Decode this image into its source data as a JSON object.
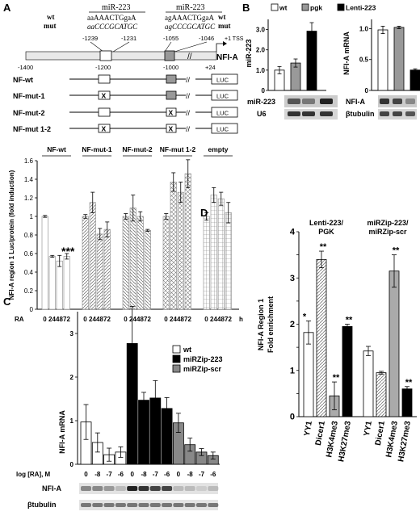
{
  "panels": {
    "A": "A",
    "B": "B",
    "C": "C",
    "D": "D"
  },
  "panelA": {
    "mir_label_1": "miR-223",
    "mir_label_2": "miR-223",
    "wt": "wt",
    "mut": "mut",
    "wt_seq_1": "aaAAACTGgaA",
    "mut_seq_1": "aaCCCGCATGC",
    "wt_seq_2": "agAAACTGgaA",
    "mut_seq_2": "agCCCGCATGC",
    "wt_r": "wt",
    "mut_r": "mut",
    "pos_1239": "-1239",
    "pos_1231": "-1231",
    "pos_1055": "-1055",
    "pos_1046": "-1046",
    "tss": "+1 TSS",
    "gene": "NFI-A",
    "pos_1400": "-1400",
    "pos_1200": "-1200",
    "pos_1000": "-1000",
    "pos_24": "+24",
    "constructs": [
      "NF-wt",
      "NF-mut-1",
      "NF-mut-2",
      "NF-mut 1-2"
    ],
    "luc": "LUC",
    "x_mark": "X"
  },
  "chartA": {
    "type": "bar",
    "ylabel": "NFI-A region 1 Luc/protein (fold induction)",
    "groups": [
      "NF-wt",
      "NF-mut-1",
      "NF-mut-2",
      "NF-mut 1-2",
      "empty"
    ],
    "timepoints": [
      "0",
      "24",
      "48",
      "72"
    ],
    "xprefix": "RA",
    "xunit": "h",
    "ylim": [
      0,
      1.6
    ],
    "yticks": [
      "0",
      "0.2",
      "0.4",
      "0.6",
      "0.8",
      "1",
      "1.2",
      "1.4",
      "1.6"
    ],
    "values": [
      [
        1.0,
        0.57,
        0.52,
        0.57
      ],
      [
        1.0,
        1.15,
        0.81,
        0.86
      ],
      [
        1.0,
        1.09,
        1.0,
        0.85
      ],
      [
        1.0,
        1.37,
        1.26,
        1.46
      ],
      [
        1.0,
        1.23,
        1.19,
        1.04
      ]
    ],
    "errors": [
      [
        0.01,
        0.01,
        0.06,
        0.03
      ],
      [
        0.02,
        0.11,
        0.06,
        0.08
      ],
      [
        0.03,
        0.14,
        0.05,
        0.01
      ],
      [
        0.03,
        0.1,
        0.11,
        0.15
      ],
      [
        0.04,
        0.08,
        0.07,
        0.11
      ]
    ],
    "annotation": "***"
  },
  "panelB": {
    "legend": [
      "wt",
      "pgk",
      "Lenti-223"
    ],
    "chart1": {
      "ylabel": "miR-223",
      "yticks": [
        "0",
        "1.0",
        "2.0",
        "3.0"
      ],
      "ylim": [
        0,
        3.5
      ],
      "values": [
        1.0,
        1.35,
        2.92
      ],
      "errors": [
        0.18,
        0.2,
        0.42
      ]
    },
    "chart2": {
      "ylabel": "NFI-A mRNA",
      "yticks": [
        "0",
        "0.5",
        "1.0"
      ],
      "ylim": [
        0,
        1.15
      ],
      "values": [
        0.98,
        1.02,
        0.33
      ],
      "errors": [
        0.06,
        0.02,
        0.02
      ]
    },
    "blot_left": [
      "miR-223",
      "U6"
    ],
    "blot_right": [
      "NFI-A",
      "βtubulin"
    ]
  },
  "chartC": {
    "type": "bar",
    "legend": [
      "wt",
      "miRZip-223",
      "miRZip-scr"
    ],
    "ylabel": "NFI-A mRNA",
    "yticks": [
      "0",
      "1",
      "2",
      "3"
    ],
    "ylim": [
      0,
      3.5
    ],
    "xlabel": "log [RA], M",
    "ticks": [
      "0",
      "-8",
      "-7",
      "-6",
      "0",
      "-8",
      "-7",
      "-6",
      "0",
      "-8",
      "-7",
      "-6"
    ],
    "values": [
      0.97,
      0.5,
      0.22,
      0.28,
      2.77,
      1.47,
      1.52,
      1.28,
      0.95,
      0.45,
      0.28,
      0.2
    ],
    "errors": [
      0.4,
      0.22,
      0.15,
      0.12,
      0.85,
      0.18,
      0.4,
      0.25,
      0.22,
      0.15,
      0.08,
      0.08
    ],
    "blot": [
      "NFI-A",
      "βtubulin"
    ]
  },
  "chartD": {
    "type": "bar",
    "group_titles": [
      "Lenti-223/",
      "PGK",
      "miRZip-223/",
      "miRZip-scr"
    ],
    "ylabel": "NFI-A Region 1 Fold enrichment",
    "yticks": [
      "0",
      "0.5",
      "1",
      "1.5",
      "2",
      "2.5",
      "3",
      "3.5",
      "4"
    ],
    "ylim": [
      0,
      4
    ],
    "categories": [
      "YY1",
      "Dicer1",
      "H3K4me3",
      "H3K27me3",
      "YY1",
      "Dicer1",
      "H3K4me3",
      "H3K27me3"
    ],
    "values": [
      1.82,
      3.4,
      0.45,
      1.95,
      1.42,
      0.95,
      3.15,
      0.6
    ],
    "errors": [
      0.25,
      0.18,
      0.3,
      0.05,
      0.1,
      0.03,
      0.35,
      0.05
    ],
    "annotations": [
      "*",
      "**",
      "**",
      "**",
      "",
      "",
      "**",
      "**"
    ]
  }
}
